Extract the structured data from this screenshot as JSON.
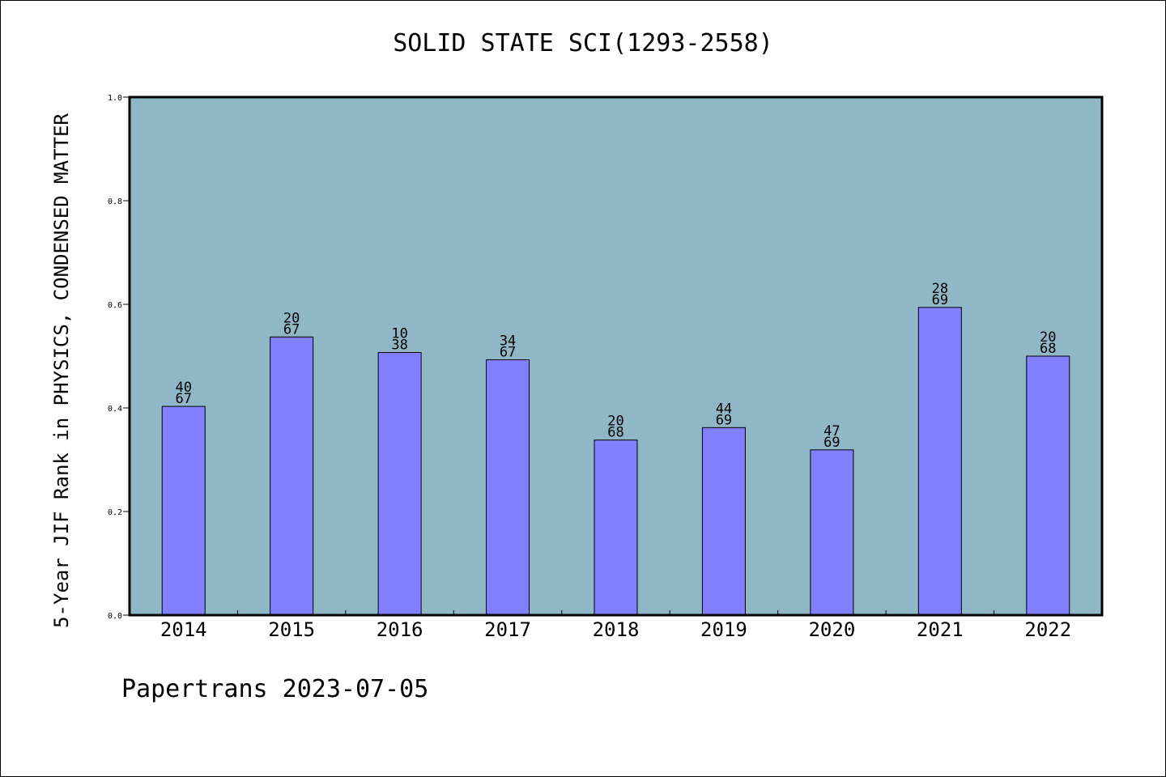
{
  "chart_data": {
    "type": "bar",
    "title": "SOLID STATE SCI(1293-2558)",
    "xlabel": "",
    "ylabel": "5-Year JIF Rank in PHYSICS, CONDENSED MATTER",
    "categories": [
      "2014",
      "2015",
      "2016",
      "2017",
      "2018",
      "2019",
      "2020",
      "2021",
      "2022"
    ],
    "values": [
      0.403,
      0.537,
      0.507,
      0.493,
      0.338,
      0.362,
      0.319,
      0.594,
      0.5
    ],
    "rank_labels": [
      {
        "rank": "40",
        "total": "67"
      },
      {
        "rank": "20",
        "total": "67"
      },
      {
        "rank": "10",
        "total": "38"
      },
      {
        "rank": "34",
        "total": "67"
      },
      {
        "rank": "20",
        "total": "68"
      },
      {
        "rank": "44",
        "total": "69"
      },
      {
        "rank": "47",
        "total": "69"
      },
      {
        "rank": "28",
        "total": "69"
      },
      {
        "rank": "20",
        "total": "68"
      }
    ],
    "ylim": [
      0.0,
      1.0
    ],
    "yticks": [
      "0.0",
      "0.2",
      "0.4",
      "0.6",
      "0.8",
      "1.0"
    ],
    "grid": false,
    "legend": "none",
    "colors": {
      "plot_background": "#8fb7c5",
      "bar_fill": "#8080ff",
      "bar_stroke": "#000000"
    }
  },
  "footer": {
    "text": "Papertrans 2023-07-05"
  }
}
